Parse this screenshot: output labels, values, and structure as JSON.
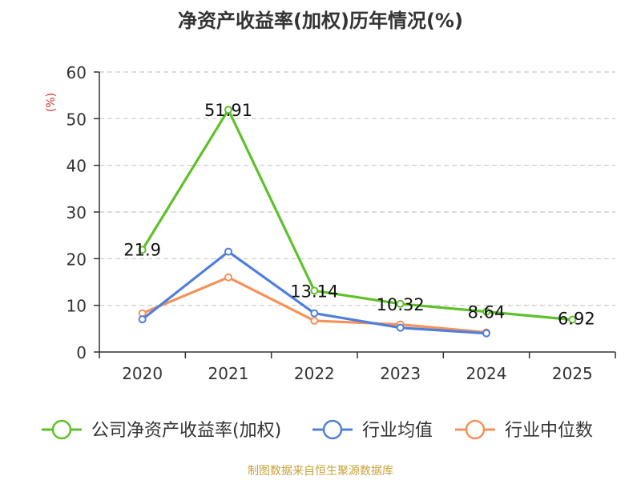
{
  "chart_data": {
    "type": "line",
    "title": "净资产收益率(加权)历年情况(%)",
    "ylabel": "(%)",
    "xlabel": "",
    "categories": [
      "2020",
      "2021",
      "2022",
      "2023",
      "2024",
      "2025"
    ],
    "ylim": [
      0,
      60
    ],
    "yticks": [
      "0",
      "10",
      "20",
      "30",
      "40",
      "50",
      "60"
    ],
    "grid": true,
    "legend_position": "bottom",
    "series": [
      {
        "name": "公司净资产收益率(加权)",
        "color": "#5ec12a",
        "values": [
          21.9,
          51.91,
          13.14,
          10.32,
          8.64,
          6.92
        ],
        "labels": [
          "21.9",
          "51.91",
          "13.14",
          "10.32",
          "8.64",
          "6.92"
        ]
      },
      {
        "name": "行业均值",
        "color": "#4f7fdc",
        "values": [
          7.0,
          21.5,
          8.3,
          5.2,
          4.0,
          null
        ]
      },
      {
        "name": "行业中位数",
        "color": "#f4925b",
        "values": [
          8.3,
          16.0,
          6.7,
          5.9,
          4.2,
          null
        ]
      }
    ],
    "source": "制图数据来自恒生聚源数据库"
  }
}
